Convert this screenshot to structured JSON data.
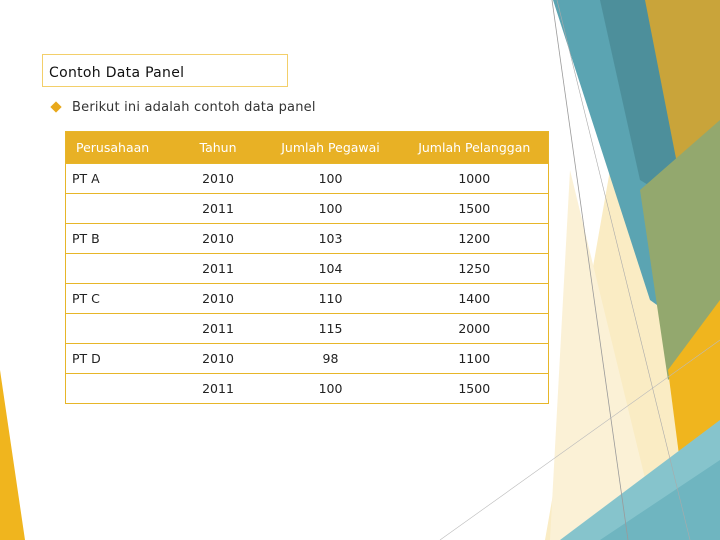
{
  "slide": {
    "title": "Contoh Data Panel",
    "bullet": "Berikut ini adalah contoh data panel",
    "colors": {
      "accent": "#e8b125",
      "teal": "#5aa8b8",
      "light_yellow": "#f8e4a8"
    }
  },
  "table": {
    "headers": [
      "Perusahaan",
      "Tahun",
      "Jumlah Pegawai",
      "Jumlah Pelanggan"
    ],
    "rows": [
      [
        "PT A",
        "2010",
        "100",
        "1000"
      ],
      [
        "",
        "2011",
        "100",
        "1500"
      ],
      [
        "PT B",
        "2010",
        "103",
        "1200"
      ],
      [
        "",
        "2011",
        "104",
        "1250"
      ],
      [
        "PT C",
        "2010",
        "110",
        "1400"
      ],
      [
        "",
        "2011",
        "115",
        "2000"
      ],
      [
        "PT D",
        "2010",
        "98",
        "1100"
      ],
      [
        "",
        "2011",
        "100",
        "1500"
      ]
    ]
  }
}
